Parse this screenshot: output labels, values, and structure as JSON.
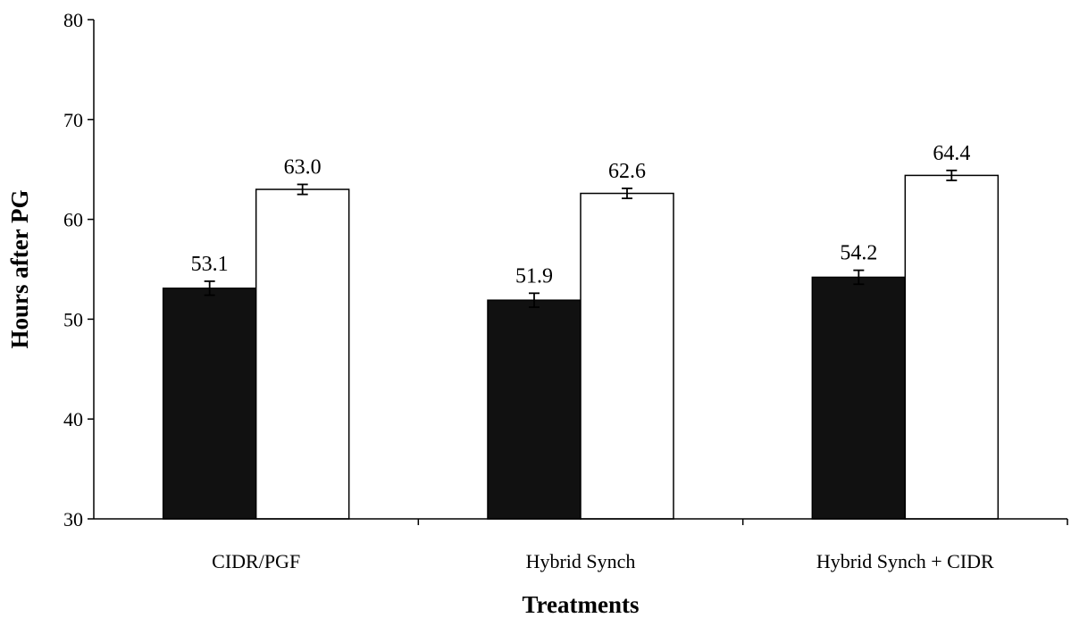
{
  "chart_data": {
    "type": "bar",
    "title": "",
    "xlabel": "Treatments",
    "ylabel": "Hours after PG",
    "categories": [
      "CIDR/PGF",
      "Hybrid Synch",
      "Hybrid Synch + CIDR"
    ],
    "series": [
      {
        "color": "#111111",
        "values": [
          53.1,
          51.9,
          54.2
        ],
        "errors": [
          0.7,
          0.7,
          0.7
        ],
        "labels": [
          "53.1",
          "51.9",
          "54.2"
        ]
      },
      {
        "color": "#ffffff",
        "values": [
          63.0,
          62.6,
          64.4
        ],
        "errors": [
          0.5,
          0.5,
          0.5
        ],
        "labels": [
          "63.0",
          "62.6",
          "64.4"
        ]
      }
    ],
    "ylim": [
      30,
      80
    ],
    "yticks": [
      30,
      40,
      50,
      60,
      70,
      80
    ],
    "ytick_labels": [
      "30",
      "40",
      "50",
      "60",
      "70",
      "80"
    ],
    "grid": false,
    "legend": "none"
  }
}
